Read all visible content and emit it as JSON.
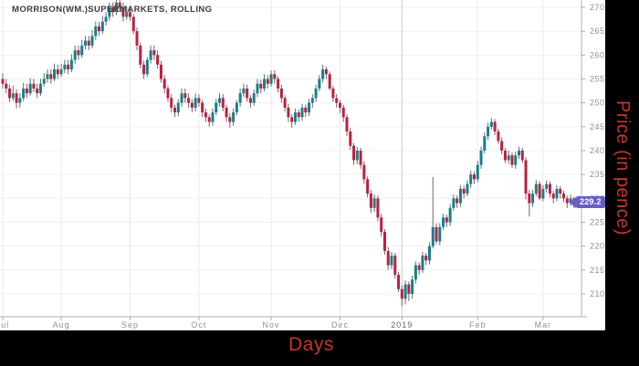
{
  "colors": {
    "up_candle": "#15808c",
    "down_candle": "#c01e3e",
    "wick": "#6b6b6b",
    "grid_h": "#f0f0f0",
    "grid_v": "#eaeaea",
    "grid_v_year": "#cccccc",
    "axis_line": "#b3b3b3",
    "tick_mark": "#a8a8a8",
    "tick_text": "#8f8f8f",
    "year_text": "#666666",
    "title_text": "#3d3d3d",
    "axis_title_red": "#c3362b",
    "badge_bg": "#6a5ec6",
    "badge_text": "#ffffff",
    "plot_bg": "#ffffff",
    "frame_bg": "#000000"
  },
  "chart_data": {
    "type": "candlestick",
    "title": "MORRISON(WM.)SUPERMARKETS, ROLLING",
    "xlabel": "Days",
    "ylabel": "Price (in pence)",
    "last_price": 229.2,
    "last_price_label": "229.2",
    "ylim": [
      205,
      271.5
    ],
    "grid": true,
    "y_ticks": [
      210,
      215,
      220,
      225,
      230,
      235,
      240,
      245,
      250,
      255,
      260,
      265,
      270
    ],
    "months": [
      {
        "label": "Jul",
        "index": 0
      },
      {
        "label": "Aug",
        "index": 17
      },
      {
        "label": "Sep",
        "index": 37
      },
      {
        "label": "Oct",
        "index": 57
      },
      {
        "label": "Nov",
        "index": 78
      },
      {
        "label": "Dec",
        "index": 98
      },
      {
        "label": "2019",
        "index": 116
      },
      {
        "label": "Feb",
        "index": 138
      },
      {
        "label": "Mar",
        "index": 157
      }
    ],
    "candles_format": [
      "open",
      "high",
      "low",
      "close"
    ],
    "candles": [
      [
        255,
        256.2,
        253.0,
        254
      ],
      [
        254,
        255.0,
        252.0,
        253
      ],
      [
        253,
        253.8,
        250.2,
        251
      ],
      [
        251,
        253.6,
        250.4,
        252
      ],
      [
        252,
        252.8,
        248.8,
        250
      ],
      [
        250,
        252.0,
        249.0,
        251
      ],
      [
        251,
        254.2,
        250.4,
        253
      ],
      [
        253,
        254.0,
        251.0,
        252
      ],
      [
        252,
        255.2,
        251.5,
        254
      ],
      [
        254,
        255.0,
        252.2,
        253
      ],
      [
        253,
        254.0,
        251.0,
        252
      ],
      [
        252,
        255.0,
        251.5,
        254
      ],
      [
        254,
        256.2,
        253.4,
        255
      ],
      [
        255,
        257.0,
        254.2,
        256
      ],
      [
        256,
        257.0,
        254.0,
        255
      ],
      [
        255,
        258.2,
        254.5,
        257
      ],
      [
        257,
        258.0,
        255.0,
        256
      ],
      [
        256,
        258.2,
        255.4,
        257
      ],
      [
        257,
        259.0,
        256.2,
        258
      ],
      [
        258,
        259.0,
        256.0,
        257
      ],
      [
        257,
        260.2,
        256.4,
        259
      ],
      [
        259,
        262.0,
        258.2,
        261
      ],
      [
        261,
        262.0,
        259.0,
        260
      ],
      [
        260,
        263.2,
        259.4,
        262
      ],
      [
        262,
        264.0,
        261.2,
        263
      ],
      [
        263,
        264.0,
        261.0,
        262
      ],
      [
        262,
        265.2,
        261.4,
        264
      ],
      [
        264,
        267.0,
        263.2,
        266
      ],
      [
        266,
        267.0,
        264.0,
        265
      ],
      [
        265,
        268.2,
        264.4,
        267
      ],
      [
        267,
        269.0,
        266.2,
        268
      ],
      [
        268,
        271.0,
        267.2,
        270
      ],
      [
        270,
        271.0,
        268.0,
        269
      ],
      [
        269,
        272.0,
        268.4,
        271
      ],
      [
        271,
        272.0,
        269.0,
        270
      ],
      [
        270,
        271.0,
        267.0,
        268
      ],
      [
        268,
        270.2,
        267.4,
        269
      ],
      [
        269,
        269.8,
        267.2,
        268
      ],
      [
        268,
        268.6,
        264.4,
        265
      ],
      [
        265,
        265.8,
        261.0,
        262
      ],
      [
        262,
        262.6,
        257.2,
        258
      ],
      [
        258,
        258.8,
        255.0,
        256
      ],
      [
        256,
        259.6,
        255.4,
        259
      ],
      [
        259,
        262.0,
        258.2,
        261
      ],
      [
        261,
        262.0,
        259.0,
        260
      ],
      [
        260,
        261.0,
        257.2,
        258
      ],
      [
        258,
        258.8,
        254.2,
        255
      ],
      [
        255,
        255.8,
        252.0,
        253
      ],
      [
        253,
        253.6,
        250.2,
        251
      ],
      [
        251,
        251.8,
        248.0,
        249
      ],
      [
        249,
        249.6,
        247.0,
        248
      ],
      [
        248,
        250.8,
        247.2,
        250
      ],
      [
        250,
        253.0,
        249.2,
        252
      ],
      [
        252,
        253.0,
        250.0,
        251
      ],
      [
        251,
        252.0,
        249.0,
        250
      ],
      [
        250,
        250.8,
        248.0,
        249
      ],
      [
        249,
        252.0,
        248.2,
        251
      ],
      [
        251,
        251.8,
        249.2,
        250
      ],
      [
        250,
        250.6,
        247.0,
        248
      ],
      [
        248,
        248.8,
        246.0,
        247
      ],
      [
        247,
        247.6,
        245.0,
        246
      ],
      [
        246,
        248.8,
        245.2,
        248
      ],
      [
        248,
        250.8,
        247.4,
        250
      ],
      [
        250,
        252.0,
        249.2,
        251
      ],
      [
        251,
        251.8,
        248.2,
        249
      ],
      [
        249,
        249.6,
        246.0,
        247
      ],
      [
        247,
        247.8,
        244.8,
        246
      ],
      [
        246,
        248.8,
        245.2,
        248
      ],
      [
        248,
        250.6,
        247.4,
        250
      ],
      [
        250,
        253.0,
        249.2,
        252
      ],
      [
        252,
        254.0,
        251.2,
        253
      ],
      [
        253,
        253.8,
        250.2,
        251
      ],
      [
        251,
        251.6,
        249.0,
        250
      ],
      [
        250,
        252.8,
        249.4,
        252
      ],
      [
        252,
        255.0,
        251.2,
        254
      ],
      [
        254,
        254.8,
        252.0,
        253
      ],
      [
        253,
        256.0,
        252.4,
        255
      ],
      [
        255,
        255.8,
        253.0,
        254
      ],
      [
        254,
        256.8,
        253.4,
        256
      ],
      [
        256,
        256.8,
        254.0,
        255
      ],
      [
        255,
        255.6,
        252.2,
        253
      ],
      [
        253,
        253.8,
        250.0,
        251
      ],
      [
        251,
        251.6,
        248.2,
        249
      ],
      [
        249,
        249.8,
        246.0,
        247
      ],
      [
        247,
        247.6,
        244.8,
        246
      ],
      [
        246,
        248.8,
        245.4,
        248
      ],
      [
        248,
        248.6,
        246.0,
        247
      ],
      [
        247,
        249.8,
        246.2,
        249
      ],
      [
        249,
        249.6,
        247.0,
        248
      ],
      [
        248,
        250.8,
        247.2,
        250
      ],
      [
        250,
        251.8,
        249.0,
        251
      ],
      [
        251,
        253.8,
        250.2,
        253
      ],
      [
        253,
        255.8,
        252.4,
        255
      ],
      [
        255,
        258.0,
        254.2,
        257
      ],
      [
        257,
        257.6,
        255.0,
        256
      ],
      [
        256,
        256.6,
        252.6,
        253
      ],
      [
        253,
        253.6,
        250.2,
        251
      ],
      [
        251,
        251.8,
        249.0,
        250
      ],
      [
        250,
        250.6,
        247.9,
        249
      ],
      [
        249,
        249.6,
        246.0,
        247
      ],
      [
        247,
        247.6,
        243.0,
        244
      ],
      [
        244,
        244.8,
        240.2,
        241
      ],
      [
        241,
        241.6,
        237.0,
        238
      ],
      [
        238,
        240.8,
        237.2,
        240
      ],
      [
        240,
        240.6,
        236.2,
        237
      ],
      [
        237,
        237.8,
        233.0,
        234
      ],
      [
        234,
        234.6,
        230.2,
        231
      ],
      [
        231,
        231.8,
        227.0,
        228
      ],
      [
        228,
        230.8,
        227.2,
        230
      ],
      [
        230,
        230.6,
        225.2,
        226
      ],
      [
        226,
        226.8,
        222.0,
        223
      ],
      [
        223,
        223.6,
        218.2,
        219
      ],
      [
        219,
        219.8,
        215.0,
        216
      ],
      [
        216,
        218.8,
        215.2,
        218
      ],
      [
        218,
        218.6,
        213.2,
        214
      ],
      [
        214,
        214.6,
        210.4,
        211
      ],
      [
        211,
        211.8,
        207.5,
        209
      ],
      [
        209,
        212.8,
        207.8,
        212
      ],
      [
        212,
        212.6,
        208.5,
        210
      ],
      [
        210,
        213.8,
        209.0,
        213
      ],
      [
        213,
        216.8,
        212.2,
        216
      ],
      [
        216,
        216.6,
        214.0,
        215
      ],
      [
        215,
        218.8,
        214.4,
        218
      ],
      [
        218,
        218.6,
        216.0,
        217
      ],
      [
        217,
        220.8,
        216.2,
        220
      ],
      [
        220,
        234.5,
        219.5,
        224
      ],
      [
        224,
        224.8,
        220.4,
        221
      ],
      [
        221,
        224.8,
        220.2,
        224
      ],
      [
        224,
        226.8,
        223.4,
        226
      ],
      [
        226,
        226.6,
        224.0,
        225
      ],
      [
        225,
        228.8,
        224.2,
        228
      ],
      [
        228,
        230.8,
        227.4,
        230
      ],
      [
        230,
        230.6,
        228.0,
        229
      ],
      [
        229,
        232.8,
        228.2,
        232
      ],
      [
        232,
        232.6,
        230.0,
        231
      ],
      [
        231,
        233.8,
        230.4,
        233
      ],
      [
        233,
        235.8,
        232.2,
        235
      ],
      [
        235,
        235.6,
        233.0,
        234
      ],
      [
        234,
        237.8,
        233.4,
        237
      ],
      [
        237,
        240.8,
        236.2,
        240
      ],
      [
        240,
        243.8,
        239.4,
        243
      ],
      [
        243,
        245.8,
        242.2,
        245
      ],
      [
        245,
        246.8,
        244.4,
        246
      ],
      [
        246,
        246.6,
        243.2,
        244
      ],
      [
        244,
        244.6,
        241.4,
        242
      ],
      [
        242,
        242.8,
        239.2,
        240
      ],
      [
        240,
        240.6,
        237.4,
        238
      ],
      [
        238,
        240.0,
        237.2,
        239
      ],
      [
        239,
        239.6,
        236.4,
        237
      ],
      [
        237,
        239.8,
        236.2,
        239
      ],
      [
        239,
        240.8,
        238.2,
        240
      ],
      [
        240,
        240.6,
        237.4,
        238
      ],
      [
        238,
        238.6,
        229.8,
        231
      ],
      [
        231,
        231.8,
        226.2,
        229
      ],
      [
        229,
        231.8,
        228.2,
        231
      ],
      [
        231,
        233.8,
        230.4,
        233
      ],
      [
        233,
        233.6,
        229.6,
        230
      ],
      [
        230,
        232.8,
        229.4,
        232
      ],
      [
        232,
        233.8,
        231.2,
        233
      ],
      [
        233,
        233.6,
        230.2,
        231
      ],
      [
        231,
        231.6,
        229.0,
        230
      ],
      [
        230,
        232.8,
        229.4,
        232
      ],
      [
        232,
        232.6,
        230.0,
        231
      ],
      [
        231,
        231.6,
        229.2,
        230
      ],
      [
        230,
        230.6,
        228.0,
        229
      ],
      [
        229,
        230.8,
        228.4,
        230
      ],
      [
        230,
        230.4,
        228.0,
        229.2
      ]
    ]
  }
}
